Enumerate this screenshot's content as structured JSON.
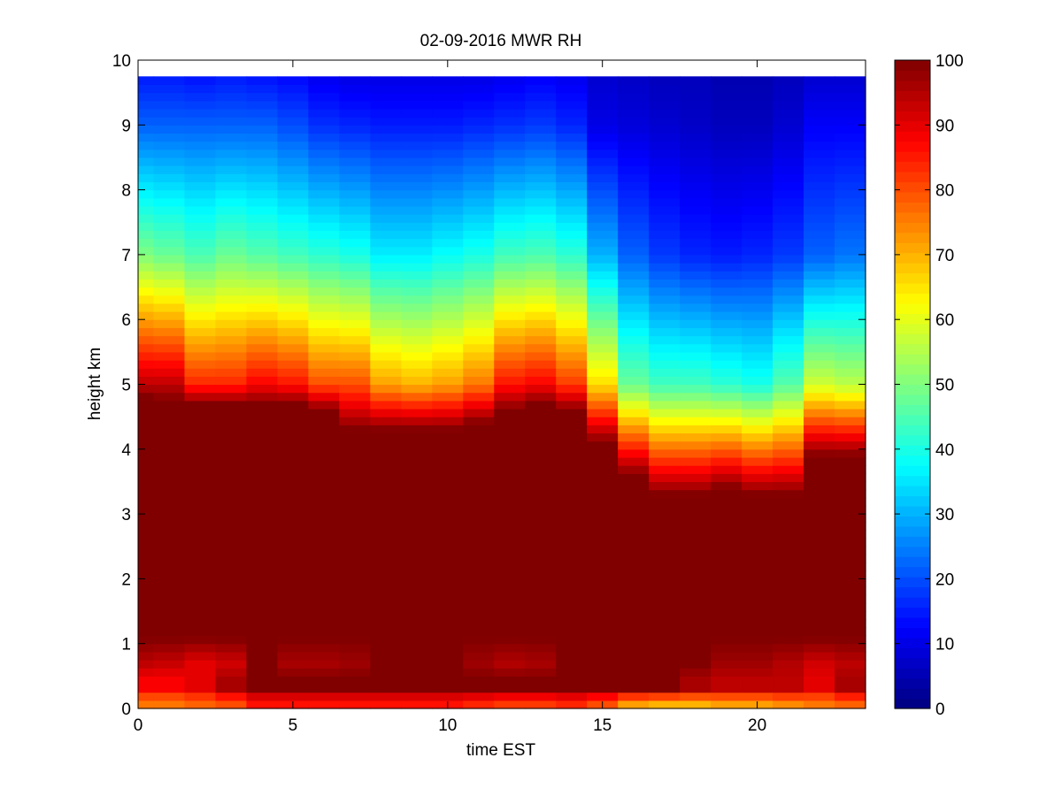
{
  "chart_data": {
    "type": "heatmap",
    "title": "02-09-2016 MWR RH",
    "xlabel": "time EST",
    "ylabel": "height km",
    "xlim": [
      0,
      23.5
    ],
    "ylim": [
      0,
      10
    ],
    "xticks": [
      0,
      5,
      10,
      15,
      20
    ],
    "yticks": [
      0,
      1,
      2,
      3,
      4,
      5,
      6,
      7,
      8,
      9,
      10
    ],
    "colormap": "jet",
    "clim": [
      0,
      100
    ],
    "colorbar_ticks": [
      0,
      10,
      20,
      30,
      40,
      50,
      60,
      70,
      80,
      90,
      100
    ],
    "x": [
      0,
      1,
      2,
      3,
      4,
      5,
      6,
      7,
      8,
      9,
      10,
      11,
      12,
      13,
      14,
      15,
      16,
      17,
      18,
      19,
      20,
      21,
      22,
      23
    ],
    "y_top": 9.75,
    "columns": [
      {
        "x": 0,
        "rh_5": 94,
        "base": 4.8,
        "rh_7": 50,
        "rh_9": 22,
        "rh_top": 15
      },
      {
        "x": 1,
        "rh_5": 94,
        "base": 4.75,
        "rh_7": 48,
        "rh_9": 22,
        "rh_top": 15
      },
      {
        "x": 2,
        "rh_5": 84,
        "base": 4.7,
        "rh_7": 45,
        "rh_9": 22,
        "rh_top": 14
      },
      {
        "x": 3,
        "rh_5": 84,
        "base": 4.7,
        "rh_7": 48,
        "rh_9": 22,
        "rh_top": 15
      },
      {
        "x": 4,
        "rh_5": 88,
        "base": 4.7,
        "rh_7": 46,
        "rh_9": 22,
        "rh_top": 14
      },
      {
        "x": 5,
        "rh_5": 86,
        "base": 4.7,
        "rh_7": 44,
        "rh_9": 20,
        "rh_top": 13
      },
      {
        "x": 6,
        "rh_5": 80,
        "base": 4.6,
        "rh_7": 42,
        "rh_9": 17,
        "rh_top": 11
      },
      {
        "x": 7,
        "rh_5": 80,
        "base": 4.3,
        "rh_7": 40,
        "rh_9": 16,
        "rh_top": 10
      },
      {
        "x": 8,
        "rh_5": 72,
        "base": 4.3,
        "rh_7": 36,
        "rh_9": 15,
        "rh_top": 10
      },
      {
        "x": 9,
        "rh_5": 70,
        "base": 4.3,
        "rh_7": 36,
        "rh_9": 15,
        "rh_top": 10
      },
      {
        "x": 10,
        "rh_5": 72,
        "base": 4.3,
        "rh_7": 38,
        "rh_9": 15,
        "rh_top": 10
      },
      {
        "x": 11,
        "rh_5": 76,
        "base": 4.4,
        "rh_7": 40,
        "rh_9": 16,
        "rh_top": 10
      },
      {
        "x": 12,
        "rh_5": 86,
        "base": 4.6,
        "rh_7": 44,
        "rh_9": 17,
        "rh_top": 11
      },
      {
        "x": 13,
        "rh_5": 88,
        "base": 4.7,
        "rh_7": 45,
        "rh_9": 18,
        "rh_top": 12
      },
      {
        "x": 14,
        "rh_5": 82,
        "base": 4.6,
        "rh_7": 42,
        "rh_9": 16,
        "rh_top": 11
      },
      {
        "x": 15,
        "rh_5": 66,
        "base": 4.1,
        "rh_7": 30,
        "rh_9": 10,
        "rh_top": 8
      },
      {
        "x": 16,
        "rh_5": 48,
        "base": 3.6,
        "rh_7": 22,
        "rh_9": 9,
        "rh_top": 7
      },
      {
        "x": 17,
        "rh_5": 44,
        "base": 3.3,
        "rh_7": 18,
        "rh_9": 8,
        "rh_top": 6
      },
      {
        "x": 18,
        "rh_5": 44,
        "base": 3.3,
        "rh_7": 16,
        "rh_9": 7,
        "rh_top": 6
      },
      {
        "x": 19,
        "rh_5": 42,
        "base": 3.4,
        "rh_7": 15,
        "rh_9": 6,
        "rh_top": 5
      },
      {
        "x": 20,
        "rh_5": 40,
        "base": 3.3,
        "rh_7": 16,
        "rh_9": 6,
        "rh_top": 5
      },
      {
        "x": 21,
        "rh_5": 46,
        "base": 3.3,
        "rh_7": 18,
        "rh_9": 8,
        "rh_top": 6
      },
      {
        "x": 22,
        "rh_5": 58,
        "base": 3.9,
        "rh_7": 22,
        "rh_9": 12,
        "rh_top": 8
      },
      {
        "x": 23,
        "rh_5": 56,
        "base": 3.9,
        "rh_7": 24,
        "rh_9": 12,
        "rh_top": 8
      }
    ],
    "surface_layer": [
      {
        "x": 0,
        "rh_0": 76,
        "rh_03": 88,
        "rh_07": 94
      },
      {
        "x": 1,
        "rh_0": 76,
        "rh_03": 88,
        "rh_07": 93
      },
      {
        "x": 2,
        "rh_0": 78,
        "rh_03": 90,
        "rh_07": 90
      },
      {
        "x": 3,
        "rh_0": 80,
        "rh_03": 96,
        "rh_07": 92
      },
      {
        "x": 4,
        "rh_0": 86,
        "rh_03": 100,
        "rh_07": 100
      },
      {
        "x": 5,
        "rh_0": 86,
        "rh_03": 100,
        "rh_07": 96
      },
      {
        "x": 6,
        "rh_0": 86,
        "rh_03": 100,
        "rh_07": 96
      },
      {
        "x": 7,
        "rh_0": 86,
        "rh_03": 100,
        "rh_07": 97
      },
      {
        "x": 8,
        "rh_0": 86,
        "rh_03": 100,
        "rh_07": 100
      },
      {
        "x": 9,
        "rh_0": 86,
        "rh_03": 100,
        "rh_07": 100
      },
      {
        "x": 10,
        "rh_0": 86,
        "rh_03": 100,
        "rh_07": 100
      },
      {
        "x": 11,
        "rh_0": 84,
        "rh_03": 100,
        "rh_07": 97
      },
      {
        "x": 12,
        "rh_0": 82,
        "rh_03": 100,
        "rh_07": 95
      },
      {
        "x": 13,
        "rh_0": 82,
        "rh_03": 100,
        "rh_07": 96
      },
      {
        "x": 14,
        "rh_0": 84,
        "rh_03": 100,
        "rh_07": 100
      },
      {
        "x": 15,
        "rh_0": 80,
        "rh_03": 100,
        "rh_07": 100
      },
      {
        "x": 16,
        "rh_0": 72,
        "rh_03": 100,
        "rh_07": 100
      },
      {
        "x": 17,
        "rh_0": 70,
        "rh_03": 100,
        "rh_07": 100
      },
      {
        "x": 18,
        "rh_0": 70,
        "rh_03": 96,
        "rh_07": 100
      },
      {
        "x": 19,
        "rh_0": 72,
        "rh_03": 94,
        "rh_07": 97
      },
      {
        "x": 20,
        "rh_0": 72,
        "rh_03": 94,
        "rh_07": 97
      },
      {
        "x": 21,
        "rh_0": 74,
        "rh_03": 94,
        "rh_07": 95
      },
      {
        "x": 22,
        "rh_0": 76,
        "rh_03": 90,
        "rh_07": 92
      },
      {
        "x": 23,
        "rh_0": 78,
        "rh_03": 96,
        "rh_07": 94
      }
    ]
  }
}
